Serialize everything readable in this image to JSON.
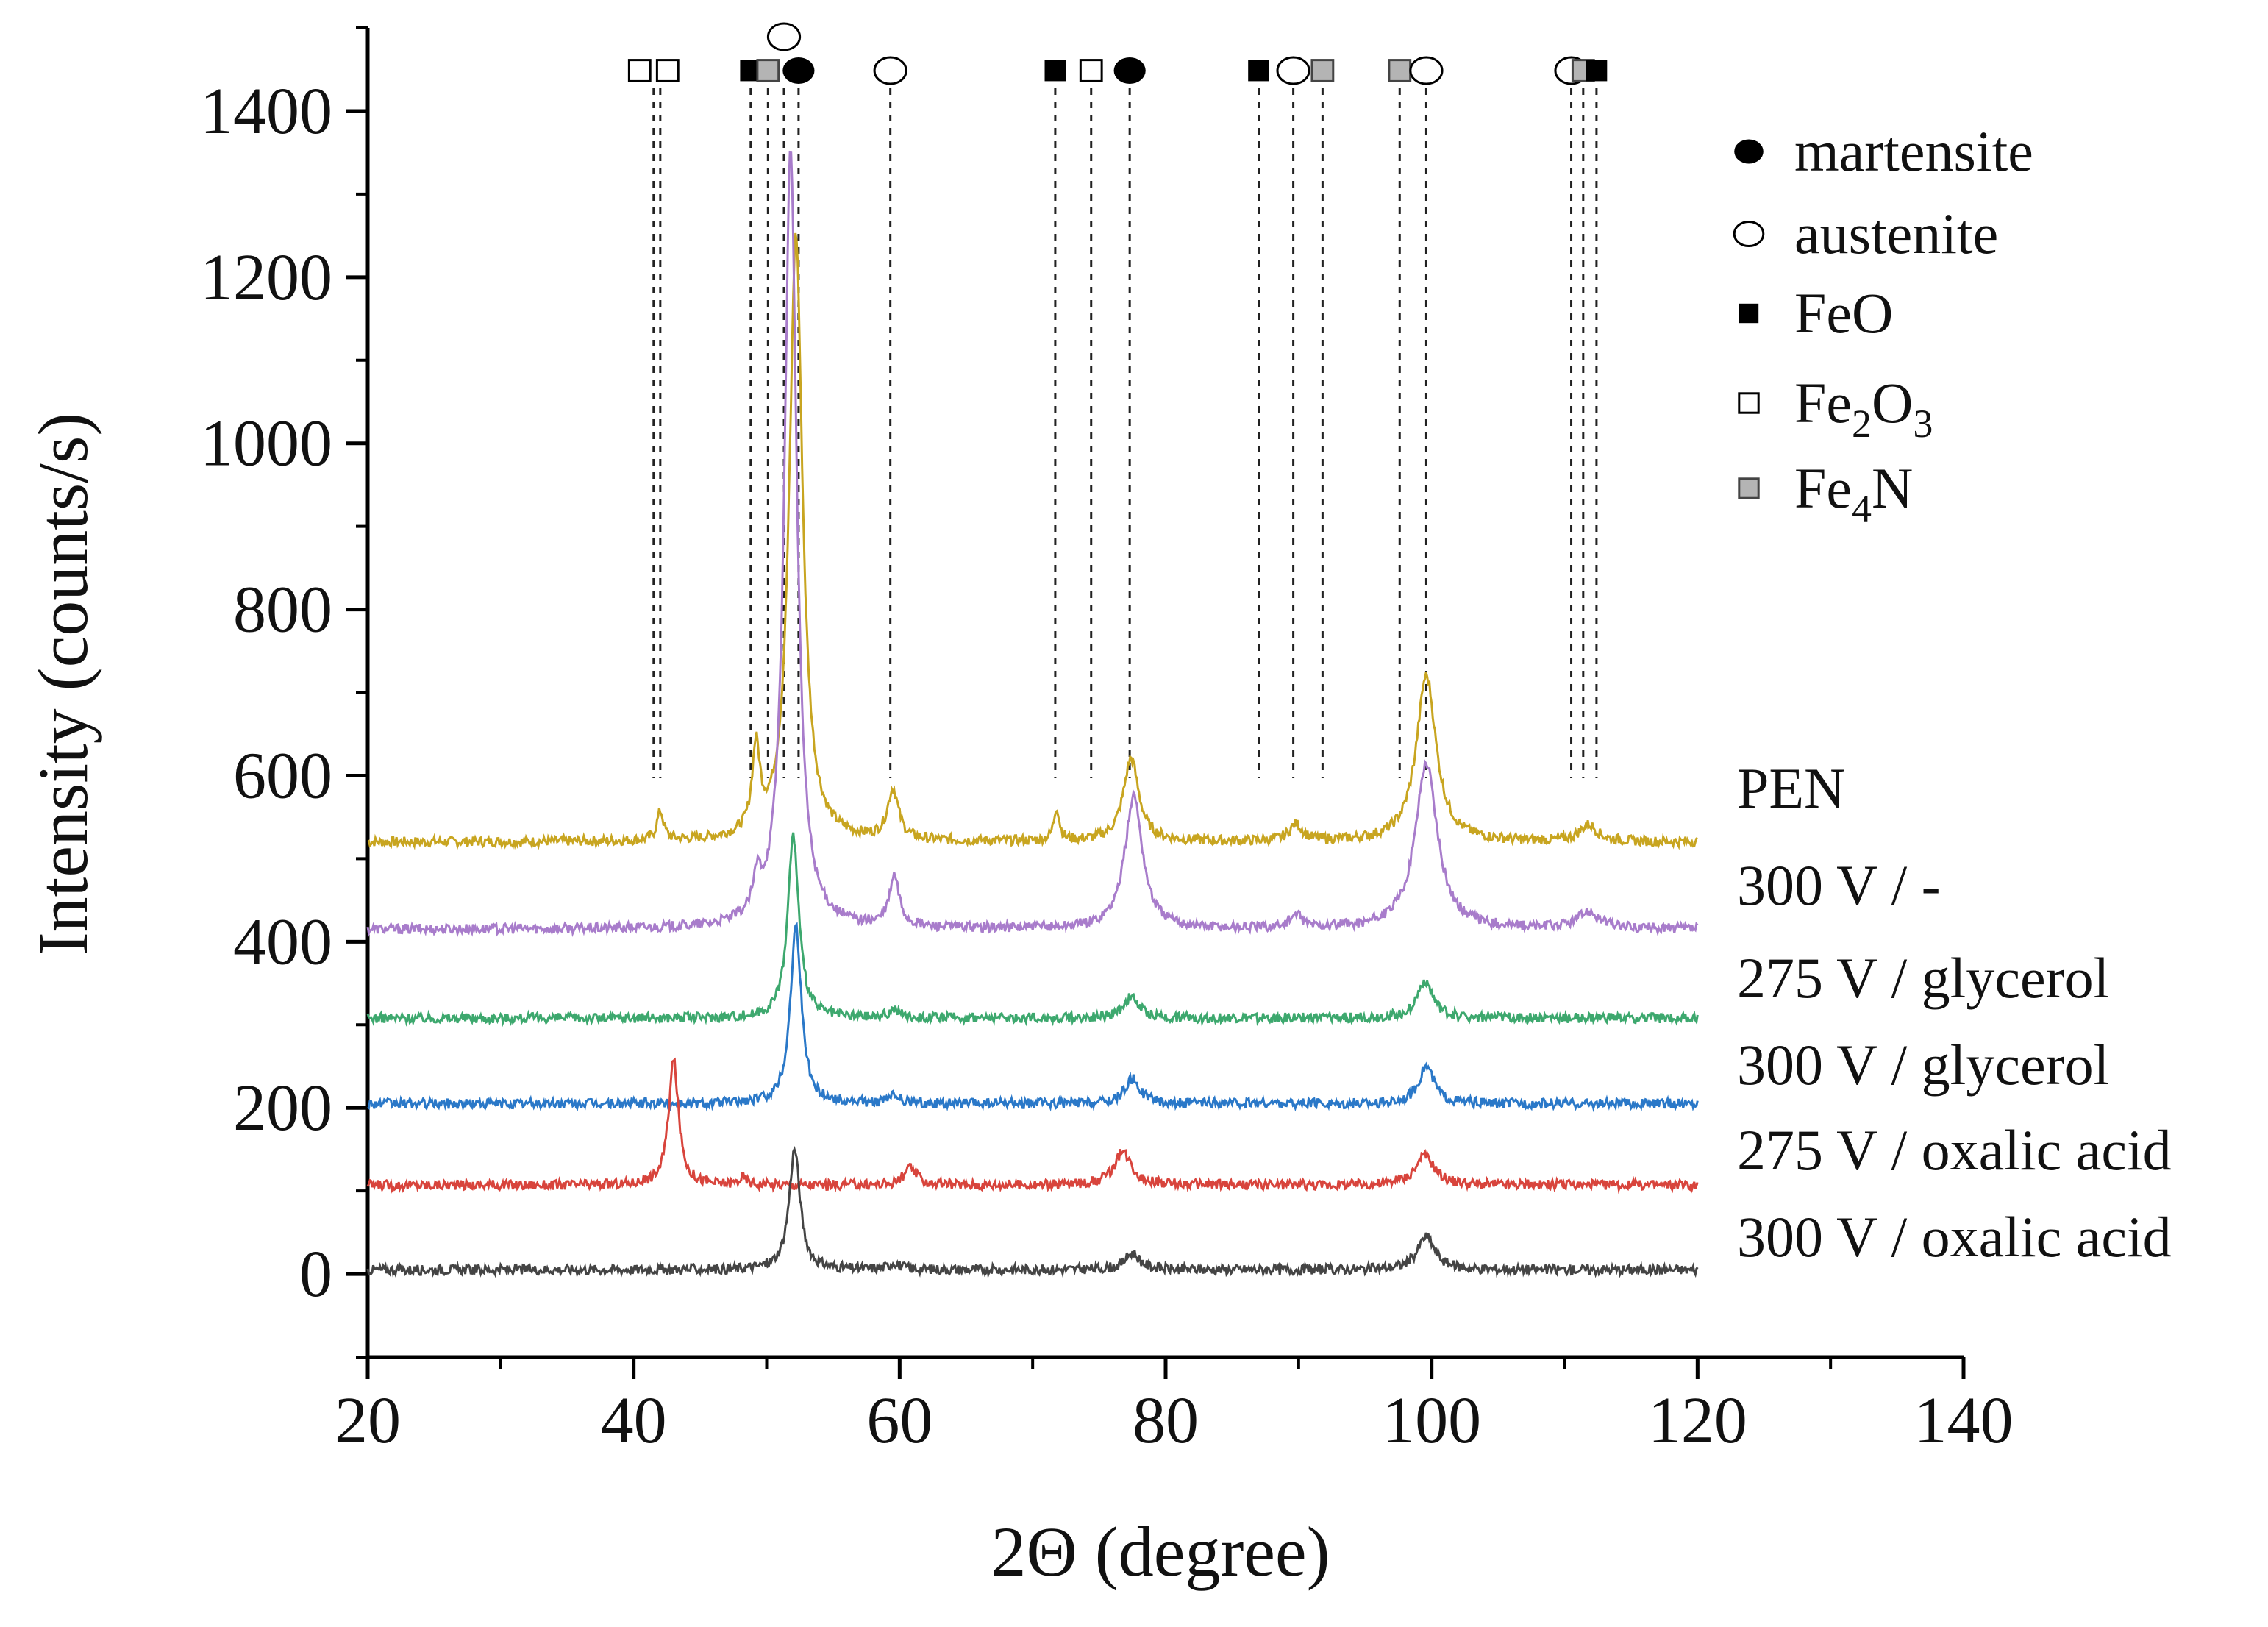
{
  "chart_data": {
    "type": "line",
    "title": "",
    "xlabel": "2Θ (degree)",
    "ylabel": "Intensity (counts/s)",
    "xlim": [
      20,
      140
    ],
    "ylim": [
      -100,
      1500
    ],
    "xticks": [
      "20",
      "40",
      "60",
      "80",
      "100",
      "120",
      "140"
    ],
    "yticks": [
      "0",
      "200",
      "400",
      "600",
      "800",
      "1000",
      "1200",
      "1400"
    ],
    "grid": false,
    "legend_position": "top-right",
    "legend": [
      {
        "key": "martensite",
        "label": "martensite",
        "marker": "filled-ellipse"
      },
      {
        "key": "austenite",
        "label": "austenite",
        "marker": "open-ellipse"
      },
      {
        "key": "FeO",
        "label": "FeO",
        "marker": "filled-square"
      },
      {
        "key": "Fe2O3",
        "label": "Fe",
        "sub1": "2",
        "mid": "O",
        "sub2": "3",
        "marker": "open-square"
      },
      {
        "key": "Fe4N",
        "label": "Fe",
        "sub1": "4",
        "mid": "N",
        "sub2": "",
        "marker": "gray-square"
      }
    ],
    "phase_lines": [
      {
        "x": 41.5,
        "markers": [
          "Fe2O3",
          "Fe2O3"
        ]
      },
      {
        "x": 42.0,
        "markers": []
      },
      {
        "x": 48.8,
        "markers": [
          "FeO"
        ]
      },
      {
        "x": 50.1,
        "markers": [
          "Fe4N"
        ]
      },
      {
        "x": 51.3,
        "markers": [
          "austenite"
        ],
        "above": true
      },
      {
        "x": 52.4,
        "markers": [
          "martensite"
        ]
      },
      {
        "x": 59.3,
        "markers": [
          "austenite"
        ]
      },
      {
        "x": 71.7,
        "markers": [
          "FeO"
        ]
      },
      {
        "x": 74.4,
        "markers": [
          "Fe2O3"
        ]
      },
      {
        "x": 77.3,
        "markers": [
          "martensite"
        ]
      },
      {
        "x": 87.0,
        "markers": [
          "FeO"
        ]
      },
      {
        "x": 89.6,
        "markers": [
          "austenite"
        ]
      },
      {
        "x": 91.8,
        "markers": [
          "Fe4N"
        ]
      },
      {
        "x": 97.6,
        "markers": [
          "Fe4N"
        ]
      },
      {
        "x": 99.6,
        "markers": [
          "austenite"
        ]
      },
      {
        "x": 110.5,
        "markers": [
          "austenite"
        ]
      },
      {
        "x": 111.4,
        "markers": [
          "Fe4N"
        ]
      },
      {
        "x": 112.4,
        "markers": [
          "FeO"
        ]
      }
    ],
    "series": [
      {
        "name": "PEN",
        "color": "#c8a520",
        "baseline": 520,
        "peaks": [
          [
            42.0,
            35,
            0.3
          ],
          [
            49.2,
            100,
            0.35
          ],
          [
            52.2,
            730,
            0.6
          ],
          [
            59.5,
            60,
            0.5
          ],
          [
            71.8,
            40,
            0.25
          ],
          [
            77.4,
            100,
            0.7
          ],
          [
            89.8,
            20,
            0.6
          ],
          [
            99.6,
            200,
            0.9
          ],
          [
            111.8,
            20,
            0.8
          ]
        ]
      },
      {
        "name": "300 V / -",
        "color": "#a87ccb",
        "baseline": 415,
        "peaks": [
          [
            49.3,
            40,
            0.35
          ],
          [
            51.8,
            940,
            0.55
          ],
          [
            59.6,
            60,
            0.45
          ],
          [
            77.6,
            160,
            0.8
          ],
          [
            89.8,
            15,
            0.6
          ],
          [
            99.6,
            200,
            1.0
          ],
          [
            111.8,
            20,
            1.0
          ]
        ]
      },
      {
        "name": "275 V / glycerol",
        "color": "#3da86e",
        "baseline": 308,
        "peaks": [
          [
            52.0,
            220,
            0.5
          ],
          [
            59.6,
            10,
            0.5
          ],
          [
            77.4,
            25,
            0.7
          ],
          [
            99.5,
            45,
            0.7
          ]
        ]
      },
      {
        "name": "300 V / glycerol",
        "color": "#2a78c8",
        "baseline": 205,
        "peaks": [
          [
            52.2,
            215,
            0.5
          ],
          [
            59.6,
            10,
            0.5
          ],
          [
            77.5,
            30,
            0.7
          ],
          [
            99.6,
            45,
            0.7
          ]
        ]
      },
      {
        "name": "275 V / oxalic acid",
        "color": "#d8443c",
        "baseline": 107,
        "peaks": [
          [
            43.0,
            150,
            0.45
          ],
          [
            48.2,
            8,
            0.4
          ],
          [
            60.8,
            20,
            0.6
          ],
          [
            76.8,
            40,
            0.8
          ],
          [
            99.5,
            35,
            0.9
          ]
        ]
      },
      {
        "name": "300 V / oxalic acid",
        "color": "#444444",
        "baseline": 5,
        "peaks": [
          [
            52.1,
            145,
            0.5
          ],
          [
            59.6,
            8,
            0.5
          ],
          [
            77.5,
            20,
            0.7
          ],
          [
            99.6,
            40,
            0.8
          ]
        ]
      }
    ]
  }
}
